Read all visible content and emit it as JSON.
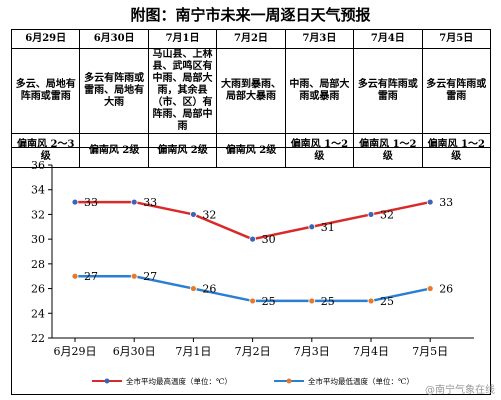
{
  "title": "附图：南宁市未来一周逐日天气预报",
  "forecast": [
    {
      "date": "6月29日",
      "weather": "多云、局地有阵雨或雷雨",
      "wind": "偏南风 2～3级"
    },
    {
      "date": "6月30日",
      "weather": "多云有阵雨或雷雨、局地有大雨",
      "wind": "偏南风 2级"
    },
    {
      "date": "7月1日",
      "weather": "马山县、上林县、武鸣区有中雨、局部大雨，其余县（市、区）有阵雨、局部中雨",
      "wind": "偏南风 2级"
    },
    {
      "date": "7月2日",
      "weather": "大雨到暴雨、局部大暴雨",
      "wind": "偏南风 2级"
    },
    {
      "date": "7月3日",
      "weather": "中雨、局部大雨或暴雨",
      "wind": "偏南风 1～2级"
    },
    {
      "date": "7月4日",
      "weather": "多云有阵雨或雷雨",
      "wind": "偏南风 1～2级"
    },
    {
      "date": "7月5日",
      "weather": "多云有阵雨或雷雨",
      "wind": "偏南风 1～2级"
    }
  ],
  "watermark": "@南宁气象在线",
  "colors": {
    "high": "#d92a2a",
    "low": "#2a7fd1",
    "marker": "#3c63b8",
    "lowMarker": "#e8782a"
  },
  "chart_data": {
    "type": "line",
    "categories": [
      "6月29日",
      "6月30日",
      "7月1日",
      "7月2日",
      "7月3日",
      "7月4日",
      "7月5日"
    ],
    "series": [
      {
        "name": "全市平均最高温度（单位：℃）",
        "values": [
          33,
          33,
          32,
          30,
          31,
          32,
          33
        ]
      },
      {
        "name": "全市平均最低温度（单位：℃）",
        "values": [
          27,
          27,
          26,
          25,
          25,
          25,
          26
        ]
      }
    ],
    "ylim": [
      22,
      36
    ],
    "yticks": [
      22,
      24,
      26,
      28,
      30,
      32,
      34,
      36
    ],
    "grid": false,
    "legend": "bottom"
  }
}
